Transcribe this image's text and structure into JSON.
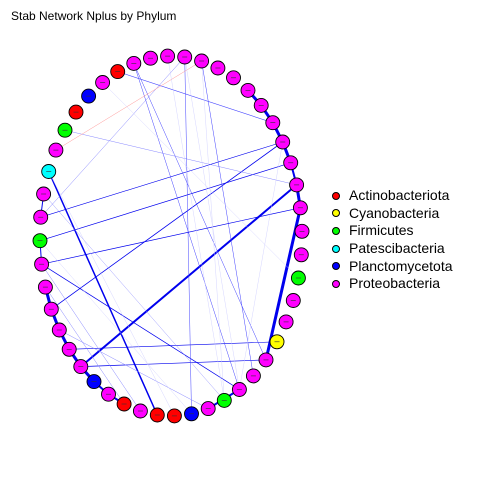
{
  "title": "Stab Network Nplus by Phylum",
  "colors": {
    "Actinobacteriota": "#FF0000",
    "Cyanobacteria": "#FFFF00",
    "Firmicutes": "#00FF00",
    "Patescibacteria": "#00FFFF",
    "Planctomycetota": "#0000FF",
    "Proteobacteria": "#FF00FF"
  },
  "legend": [
    {
      "label": "Actinobacteriota",
      "color": "#FF0000"
    },
    {
      "label": "Cyanobacteria",
      "color": "#FFFF00"
    },
    {
      "label": "Firmicutes",
      "color": "#00FF00"
    },
    {
      "label": "Patescibacteria",
      "color": "#00FFFF"
    },
    {
      "label": "Planctomycetota",
      "color": "#0000FF"
    },
    {
      "label": "Proteobacteria",
      "color": "#FF00FF"
    }
  ],
  "nodes": [
    {
      "id": 0,
      "phylum": "Proteobacteria"
    },
    {
      "id": 1,
      "phylum": "Proteobacteria"
    },
    {
      "id": 2,
      "phylum": "Proteobacteria"
    },
    {
      "id": 3,
      "phylum": "Proteobacteria"
    },
    {
      "id": 4,
      "phylum": "Proteobacteria"
    },
    {
      "id": 5,
      "phylum": "Proteobacteria"
    },
    {
      "id": 6,
      "phylum": "Proteobacteria"
    },
    {
      "id": 7,
      "phylum": "Proteobacteria"
    },
    {
      "id": 8,
      "phylum": "Proteobacteria"
    },
    {
      "id": 9,
      "phylum": "Proteobacteria"
    },
    {
      "id": 10,
      "phylum": "Proteobacteria"
    },
    {
      "id": 11,
      "phylum": "Proteobacteria"
    },
    {
      "id": 12,
      "phylum": "Proteobacteria"
    },
    {
      "id": 13,
      "phylum": "Proteobacteria"
    },
    {
      "id": 14,
      "phylum": "Proteobacteria"
    },
    {
      "id": 15,
      "phylum": "Firmicutes"
    },
    {
      "id": 16,
      "phylum": "Proteobacteria"
    },
    {
      "id": 17,
      "phylum": "Proteobacteria"
    },
    {
      "id": 18,
      "phylum": "Cyanobacteria"
    },
    {
      "id": 19,
      "phylum": "Proteobacteria"
    },
    {
      "id": 20,
      "phylum": "Proteobacteria"
    },
    {
      "id": 21,
      "phylum": "Proteobacteria"
    },
    {
      "id": 22,
      "phylum": "Firmicutes"
    },
    {
      "id": 23,
      "phylum": "Proteobacteria"
    },
    {
      "id": 24,
      "phylum": "Planctomycetota"
    },
    {
      "id": 25,
      "phylum": "Actinobacteriota"
    },
    {
      "id": 26,
      "phylum": "Actinobacteriota"
    },
    {
      "id": 27,
      "phylum": "Proteobacteria"
    },
    {
      "id": 28,
      "phylum": "Actinobacteriota"
    },
    {
      "id": 29,
      "phylum": "Proteobacteria"
    },
    {
      "id": 30,
      "phylum": "Planctomycetota"
    },
    {
      "id": 31,
      "phylum": "Proteobacteria"
    },
    {
      "id": 32,
      "phylum": "Proteobacteria"
    },
    {
      "id": 33,
      "phylum": "Proteobacteria"
    },
    {
      "id": 34,
      "phylum": "Proteobacteria"
    },
    {
      "id": 35,
      "phylum": "Proteobacteria"
    },
    {
      "id": 36,
      "phylum": "Proteobacteria"
    },
    {
      "id": 37,
      "phylum": "Firmicutes"
    },
    {
      "id": 38,
      "phylum": "Proteobacteria"
    },
    {
      "id": 39,
      "phylum": "Proteobacteria"
    },
    {
      "id": 40,
      "phylum": "Patescibacteria"
    },
    {
      "id": 41,
      "phylum": "Proteobacteria"
    },
    {
      "id": 42,
      "phylum": "Firmicutes"
    },
    {
      "id": 43,
      "phylum": "Actinobacteriota"
    },
    {
      "id": 44,
      "phylum": "Planctomycetota"
    },
    {
      "id": 45,
      "phylum": "Proteobacteria"
    },
    {
      "id": 46,
      "phylum": "Actinobacteriota"
    },
    {
      "id": 47,
      "phylum": "Proteobacteria"
    }
  ],
  "edges": [
    {
      "source": 6,
      "target": 7,
      "weight": 3,
      "color": "#0000EE"
    },
    {
      "source": 7,
      "target": 8,
      "weight": 3,
      "color": "#0000EE"
    },
    {
      "source": 8,
      "target": 9,
      "weight": 3,
      "color": "#0000EE"
    },
    {
      "source": 9,
      "target": 10,
      "weight": 3,
      "color": "#0000EE"
    },
    {
      "source": 10,
      "target": 11,
      "weight": 2,
      "color": "#0000EE"
    },
    {
      "source": 11,
      "target": 12,
      "weight": 3,
      "color": "#0000EE"
    },
    {
      "source": 12,
      "target": 19,
      "weight": 3,
      "color": "#0000EE"
    },
    {
      "source": 30,
      "target": 31,
      "weight": 3,
      "color": "#0000EE"
    },
    {
      "source": 31,
      "target": 32,
      "weight": 3,
      "color": "#0000EE"
    },
    {
      "source": 32,
      "target": 33,
      "weight": 3,
      "color": "#0000EE"
    },
    {
      "source": 33,
      "target": 34,
      "weight": 3,
      "color": "#0000EE"
    },
    {
      "source": 34,
      "target": 35,
      "weight": 3,
      "color": "#0000EE"
    },
    {
      "source": 30,
      "target": 29,
      "weight": 2,
      "color": "#0000EE"
    },
    {
      "source": 29,
      "target": 28,
      "weight": 2,
      "color": "#0000EE"
    },
    {
      "source": 36,
      "target": 37,
      "weight": 1,
      "color": "#0000EE"
    },
    {
      "source": 38,
      "target": 39,
      "weight": 1,
      "color": "#0000EE"
    },
    {
      "source": 31,
      "target": 11,
      "weight": 2,
      "color": "#0000EE"
    },
    {
      "source": 21,
      "target": 23,
      "weight": 2,
      "color": "#0000EE"
    },
    {
      "source": 40,
      "target": 26,
      "weight": 1.5,
      "color": "#0000EE"
    },
    {
      "source": 38,
      "target": 9,
      "weight": 0.6,
      "color": "#0000EE"
    },
    {
      "source": 38,
      "target": 2,
      "weight": 0.5,
      "color": "#8888FF"
    },
    {
      "source": 37,
      "target": 10,
      "weight": 0.7,
      "color": "#0000EE"
    },
    {
      "source": 34,
      "target": 9,
      "weight": 0.8,
      "color": "#0000EE"
    },
    {
      "source": 36,
      "target": 21,
      "weight": 0.7,
      "color": "#0000EE"
    },
    {
      "source": 31,
      "target": 19,
      "weight": 0.7,
      "color": "#0000EE"
    },
    {
      "source": 32,
      "target": 18,
      "weight": 0.6,
      "color": "#0000EE"
    },
    {
      "source": 46,
      "target": 8,
      "weight": 0.6,
      "color": "#4444FF"
    },
    {
      "source": 47,
      "target": 21,
      "weight": 0.5,
      "color": "#4444FF"
    },
    {
      "source": 47,
      "target": 19,
      "weight": 0.5,
      "color": "#4444FF"
    },
    {
      "source": 42,
      "target": 11,
      "weight": 0.5,
      "color": "#8888FF"
    },
    {
      "source": 3,
      "target": 20,
      "weight": 0.5,
      "color": "#4444FF"
    },
    {
      "source": 2,
      "target": 24,
      "weight": 0.5,
      "color": "#4444FF"
    },
    {
      "source": 36,
      "target": 12,
      "weight": 0.7,
      "color": "#0000EE"
    },
    {
      "source": 33,
      "target": 23,
      "weight": 0.5,
      "color": "#8888FF"
    },
    {
      "source": 39,
      "target": 22,
      "weight": 0.4,
      "color": "#8888FF"
    },
    {
      "source": 41,
      "target": 3,
      "weight": 0.5,
      "color": "#FF9999"
    },
    {
      "source": 3,
      "target": 22,
      "weight": 0.4,
      "color": "#CCCCFF"
    },
    {
      "source": 40,
      "target": 25,
      "weight": 0.4,
      "color": "#CCCCFF"
    },
    {
      "source": 2,
      "target": 21,
      "weight": 0.4,
      "color": "#CCCCFF"
    },
    {
      "source": 1,
      "target": 22,
      "weight": 0.4,
      "color": "#CCCCFF"
    },
    {
      "source": 37,
      "target": 24,
      "weight": 0.4,
      "color": "#CCCCFF"
    },
    {
      "source": 45,
      "target": 15,
      "weight": 0.4,
      "color": "#CCCCFF"
    },
    {
      "source": 36,
      "target": 27,
      "weight": 0.5,
      "color": "#8888FF"
    },
    {
      "source": 35,
      "target": 28,
      "weight": 0.5,
      "color": "#8888FF"
    },
    {
      "source": 9,
      "target": 21,
      "weight": 0.4,
      "color": "#CCCCFF"
    }
  ]
}
